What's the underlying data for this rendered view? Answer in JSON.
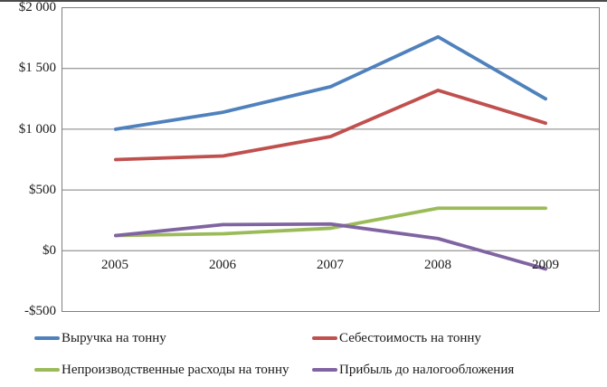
{
  "chart_data": {
    "type": "line",
    "title": "",
    "xlabel": "",
    "ylabel": "",
    "categories": [
      "2005",
      "2006",
      "2007",
      "2008",
      "2009"
    ],
    "series": [
      {
        "name": "Выручка на тонну",
        "color": "#4F81BD",
        "values": [
          1000,
          1140,
          1350,
          1760,
          1250
        ]
      },
      {
        "name": "Себестоимость на тонну",
        "color": "#C0504D",
        "values": [
          750,
          780,
          940,
          1320,
          1050
        ]
      },
      {
        "name": "Непроизводственные расходы на тонну",
        "color": "#9BBB59",
        "values": [
          125,
          140,
          185,
          350,
          350
        ]
      },
      {
        "name": "Прибыль до налогообложения",
        "color": "#8064A2",
        "values": [
          125,
          215,
          220,
          100,
          -150
        ]
      }
    ],
    "ylim": [
      -500,
      2000
    ],
    "ytick_step": 500,
    "ytick_labels": [
      "$2 000",
      "$1 500",
      "$1 000",
      "$500",
      "$0",
      "-$500"
    ],
    "grid": true,
    "legend_position": "bottom"
  }
}
